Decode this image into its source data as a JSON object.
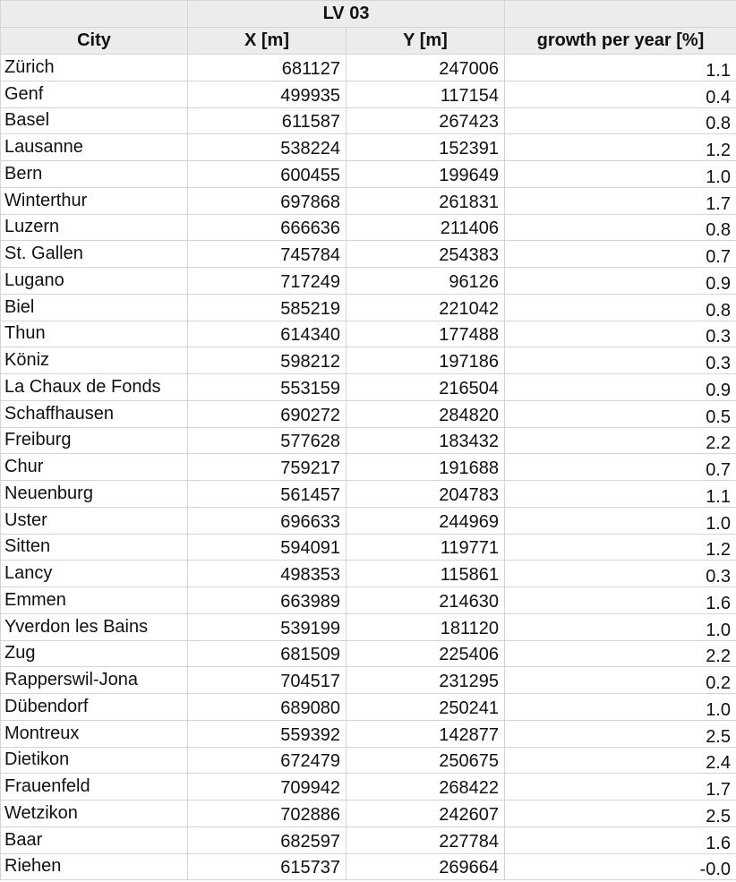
{
  "group_header": "LV 03",
  "columns": [
    "City",
    "X [m]",
    "Y [m]",
    "growth per year [%]"
  ],
  "rows": [
    [
      "Zürich",
      "681127",
      "247006",
      "1.1"
    ],
    [
      "Genf",
      "499935",
      "117154",
      "0.4"
    ],
    [
      "Basel",
      "611587",
      "267423",
      "0.8"
    ],
    [
      "Lausanne",
      "538224",
      "152391",
      "1.2"
    ],
    [
      "Bern",
      "600455",
      "199649",
      "1.0"
    ],
    [
      "Winterthur",
      "697868",
      "261831",
      "1.7"
    ],
    [
      "Luzern",
      "666636",
      "211406",
      "0.8"
    ],
    [
      "St. Gallen",
      "745784",
      "254383",
      "0.7"
    ],
    [
      "Lugano",
      "717249",
      "96126",
      "0.9"
    ],
    [
      "Biel",
      "585219",
      "221042",
      "0.8"
    ],
    [
      "Thun",
      "614340",
      "177488",
      "0.3"
    ],
    [
      "Köniz",
      "598212",
      "197186",
      "0.3"
    ],
    [
      "La Chaux de Fonds",
      "553159",
      "216504",
      "0.9"
    ],
    [
      "Schaffhausen",
      "690272",
      "284820",
      "0.5"
    ],
    [
      "Freiburg",
      "577628",
      "183432",
      "2.2"
    ],
    [
      "Chur",
      "759217",
      "191688",
      "0.7"
    ],
    [
      "Neuenburg",
      "561457",
      "204783",
      "1.1"
    ],
    [
      "Uster",
      "696633",
      "244969",
      "1.0"
    ],
    [
      "Sitten",
      "594091",
      "119771",
      "1.2"
    ],
    [
      "Lancy",
      "498353",
      "115861",
      "0.3"
    ],
    [
      "Emmen",
      "663989",
      "214630",
      "1.6"
    ],
    [
      "Yverdon les Bains",
      "539199",
      "181120",
      "1.0"
    ],
    [
      "Zug",
      "681509",
      "225406",
      "2.2"
    ],
    [
      "Rapperswil-Jona",
      "704517",
      "231295",
      "0.2"
    ],
    [
      "Dübendorf",
      "689080",
      "250241",
      "1.0"
    ],
    [
      "Montreux",
      "559392",
      "142877",
      "2.5"
    ],
    [
      "Dietikon",
      "672479",
      "250675",
      "2.4"
    ],
    [
      "Frauenfeld",
      "709942",
      "268422",
      "1.7"
    ],
    [
      "Wetzikon",
      "702886",
      "242607",
      "2.5"
    ],
    [
      "Baar",
      "682597",
      "227784",
      "1.6"
    ],
    [
      "Riehen",
      "615737",
      "269664",
      "-0.0"
    ]
  ]
}
